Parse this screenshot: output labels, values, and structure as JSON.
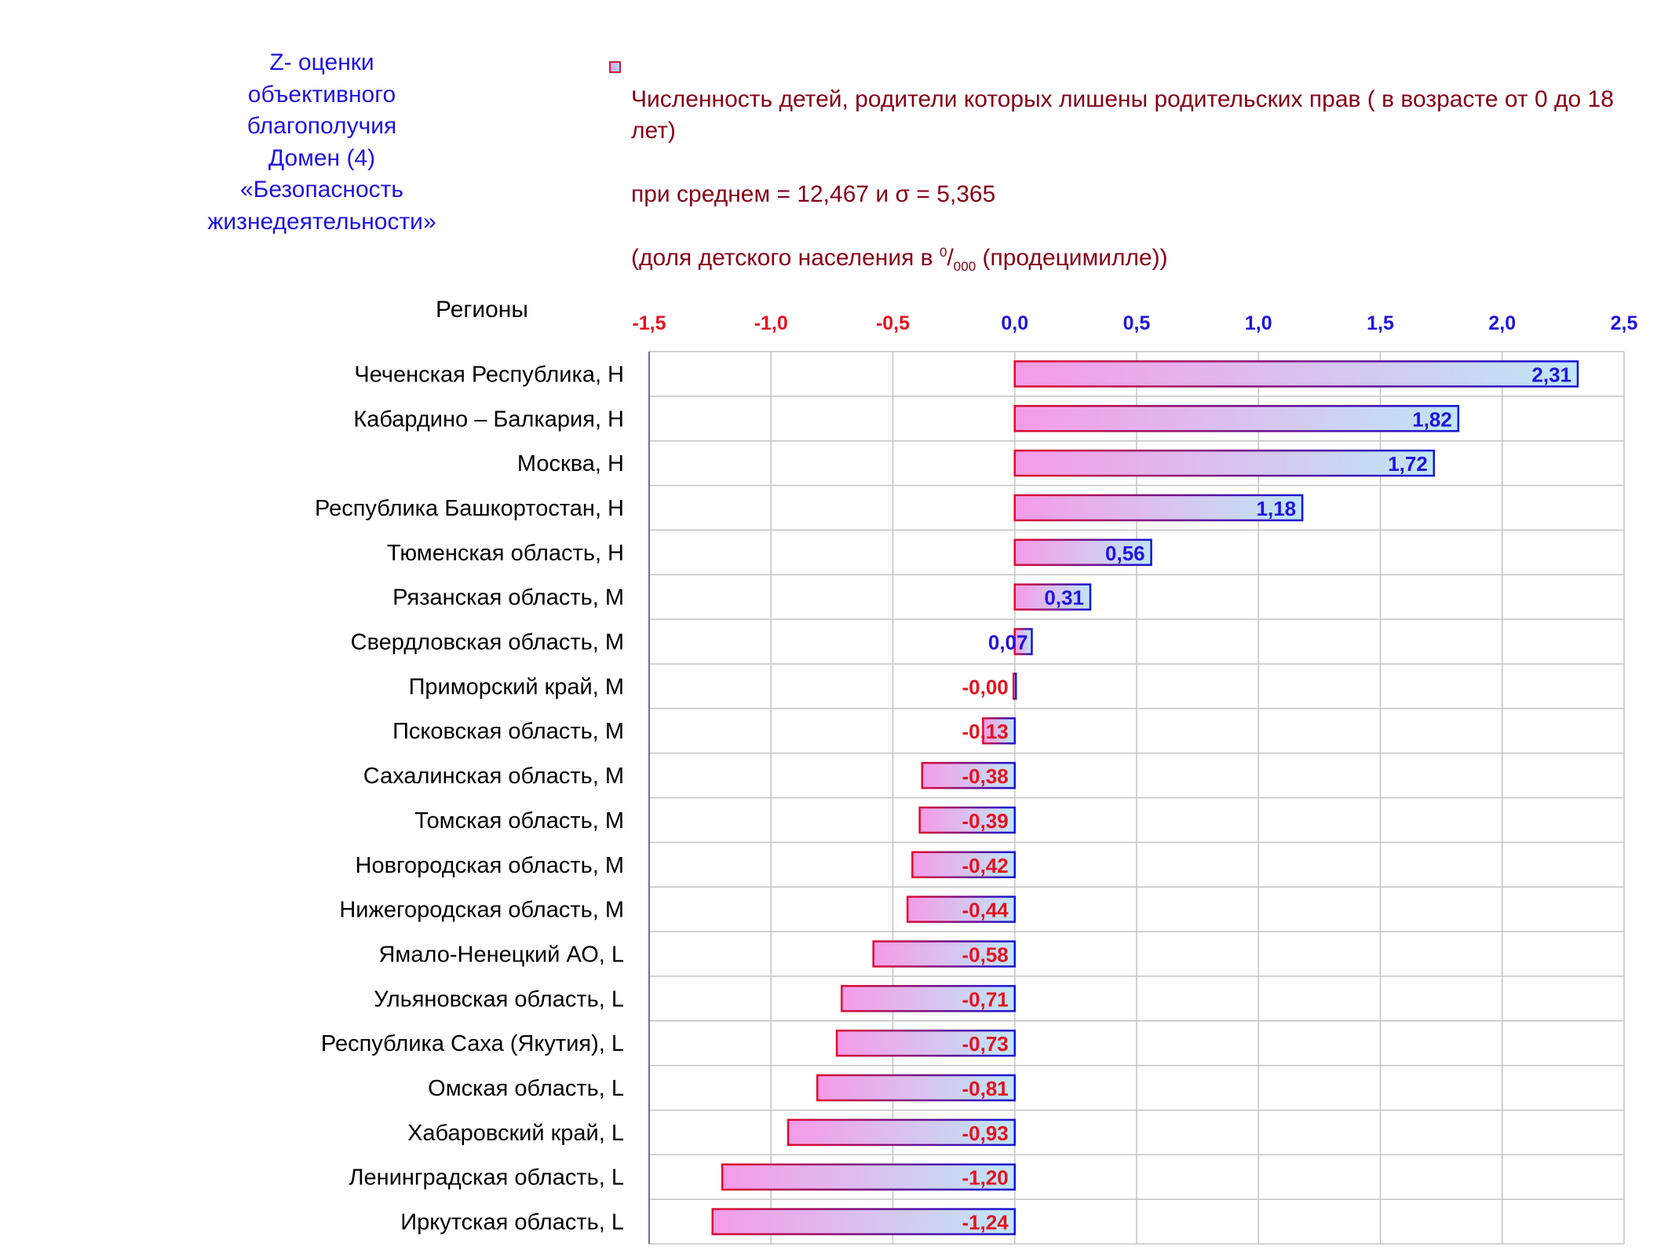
{
  "chart_data": {
    "type": "bar",
    "orientation": "horizontal",
    "title": "Z- оценки\nобъективного\nблагополучия\nДомен (4)\n«Безопасность\nжизнедеятельности»",
    "ylabel": "Регионы",
    "xlim": [
      -1.5,
      2.5
    ],
    "x_ticks": [
      "-1,5",
      "-1,0",
      "-0,5",
      "0,0",
      "0,5",
      "1,0",
      "1,5",
      "2,0",
      "2,5"
    ],
    "x_tick_values": [
      -1.5,
      -1.0,
      -0.5,
      0.0,
      0.5,
      1.0,
      1.5,
      2.0,
      2.5
    ],
    "grid": true,
    "legend_position": "top",
    "series": [
      {
        "name": "Численность детей, родители которых лишены родительских прав ( в возрасте от 0 до 18 лет)",
        "value_labels": [
          "2,31",
          "1,82",
          "1,72",
          "1,18",
          "0,56",
          "0,31",
          "0,07",
          "-0,00",
          "-0,13",
          "-0,38",
          "-0,39",
          "-0,42",
          "-0,44",
          "-0,58",
          "-0,71",
          "-0,73",
          "-0,81",
          "-0,93",
          "-1,20",
          "-1,24"
        ],
        "values": [
          2.31,
          1.82,
          1.72,
          1.18,
          0.56,
          0.31,
          0.07,
          -0.001,
          -0.13,
          -0.38,
          -0.39,
          -0.42,
          -0.44,
          -0.58,
          -0.71,
          -0.73,
          -0.81,
          -0.93,
          -1.2,
          -1.24
        ]
      }
    ],
    "categories": [
      "Чеченская Республика,  H",
      "Кабардино – Балкария,  H",
      "Москва,  H",
      "Республика Башкортостан,  H",
      "Тюменская область,  H",
      "Рязанская область,  M",
      "Свердловская область,  M",
      "Приморский край,  M",
      "Псковская область,  M",
      "Сахалинская область,  M",
      "Томская область,  M",
      "Новгородская область,  M",
      "Нижегородская область,  M",
      "Ямало-Ненецкий АО,  L",
      "Ульяновская область,  L",
      "Республика Саха (Якутия),  L",
      "Омская область,  L",
      "Хабаровский край,  L",
      "Ленинградская область,  L",
      "Иркутская область,  L"
    ],
    "legend": {
      "line1": "Численность детей, родители которых лишены родительских прав ( в возрасте от 0 до 18 лет)",
      "line2": "при среднем = 12,467  и σ = 5,365",
      "line3_before": "(доля детского населения в ",
      "line3_sup": "0",
      "line3_slash": "/",
      "line3_sub": "000",
      "line3_after": " (продецимилле))"
    },
    "colors": {
      "title": "#1f13e0",
      "legend_text": "#860018",
      "positive_label": "#1f13e0",
      "negative_label": "#e5121e",
      "bar_border_left": "#e00b2e",
      "bar_border_right": "#1414d8",
      "bar_fill_start": "#f59be8",
      "bar_fill_end": "#bfe6f6",
      "grid": "#c4c4c4"
    }
  }
}
